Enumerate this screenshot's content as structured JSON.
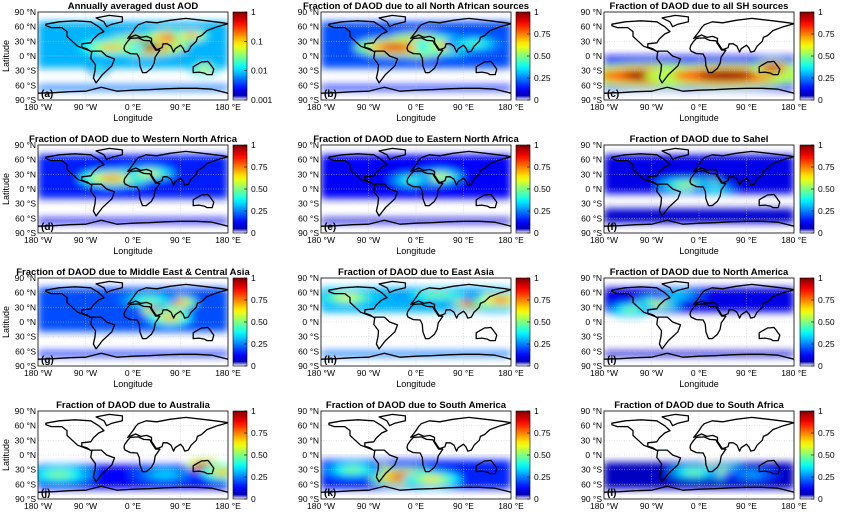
{
  "chart_data": [
    {
      "type": "heatmap",
      "panel_label": "(a)",
      "title": "Annually averaged dust AOD",
      "xlabel": "Longitude",
      "ylabel": "Latitude",
      "xlim": [
        -180,
        180
      ],
      "ylim": [
        -90,
        90
      ],
      "colorbar_ticks": [
        "1",
        "0.1",
        "0.01",
        "0.001"
      ],
      "colorbar_scale": "log",
      "clim": [
        0.001,
        1
      ],
      "blobs": [
        [
          20,
          22,
          60,
          16,
          1.0
        ],
        [
          70,
          38,
          40,
          12,
          0.85
        ],
        [
          110,
          42,
          25,
          8,
          0.8
        ],
        [
          -40,
          18,
          45,
          12,
          0.7
        ],
        [
          135,
          -25,
          22,
          10,
          0.6
        ],
        [
          -65,
          -25,
          15,
          10,
          0.45
        ]
      ],
      "base": 0.3,
      "gap": [
        -60,
        -25
      ]
    },
    {
      "type": "heatmap",
      "panel_label": "(b)",
      "title": "Fraction of DAOD due to all North African sources",
      "xlabel": "Longitude",
      "ylabel": "",
      "xlim": [
        -180,
        180
      ],
      "ylim": [
        -90,
        90
      ],
      "colorbar_ticks": [
        "1",
        "0.75",
        "0.50",
        "0.25",
        "0"
      ],
      "clim": [
        0,
        1
      ],
      "blobs": [
        [
          5,
          22,
          55,
          18,
          1.0
        ],
        [
          -40,
          18,
          55,
          14,
          0.9
        ],
        [
          60,
          22,
          45,
          14,
          0.7
        ],
        [
          110,
          25,
          40,
          12,
          0.45
        ]
      ],
      "base": 0.2,
      "gap": [
        -60,
        -25
      ]
    },
    {
      "type": "heatmap",
      "panel_label": "(c)",
      "title": "Fraction of DAOD due to all SH sources",
      "xlabel": "Longitude",
      "ylabel": "",
      "xlim": [
        -180,
        180
      ],
      "ylim": [
        -90,
        90
      ],
      "colorbar_ticks": [
        "1",
        "0.75",
        "0.50",
        "0.25",
        "0"
      ],
      "clim": [
        0,
        1
      ],
      "blobs": [
        [
          -90,
          -40,
          110,
          18,
          1.0
        ],
        [
          50,
          -40,
          110,
          18,
          1.0
        ],
        [
          140,
          -25,
          30,
          12,
          0.95
        ]
      ],
      "base": 0.15,
      "gap": [
        0,
        90
      ]
    },
    {
      "type": "heatmap",
      "panel_label": "(d)",
      "title": "Fraction of DAOD due to Western North Africa",
      "xlabel": "Longitude",
      "ylabel": "Latitude",
      "xlim": [
        -180,
        180
      ],
      "ylim": [
        -90,
        90
      ],
      "colorbar_ticks": [
        "1",
        "0.75",
        "0.50",
        "0.25",
        "0"
      ],
      "clim": [
        0,
        1
      ],
      "blobs": [
        [
          -5,
          25,
          30,
          12,
          0.9
        ],
        [
          -40,
          22,
          45,
          12,
          0.75
        ],
        [
          30,
          32,
          35,
          10,
          0.6
        ]
      ],
      "base": 0.15,
      "gap": [
        -60,
        -20
      ]
    },
    {
      "type": "heatmap",
      "panel_label": "(e)",
      "title": "Fraction of DAOD due to Eastern North Africa",
      "xlabel": "Longitude",
      "ylabel": "",
      "xlim": [
        -180,
        180
      ],
      "ylim": [
        -90,
        90
      ],
      "colorbar_ticks": [
        "1",
        "0.75",
        "0.50",
        "0.25",
        "0"
      ],
      "clim": [
        0,
        1
      ],
      "blobs": [
        [
          22,
          22,
          20,
          10,
          0.9
        ],
        [
          45,
          25,
          30,
          10,
          0.6
        ],
        [
          -10,
          18,
          30,
          10,
          0.45
        ]
      ],
      "base": 0.12,
      "gap": [
        -60,
        -20
      ]
    },
    {
      "type": "heatmap",
      "panel_label": "(f)",
      "title": "Fraction of DAOD due to Sahel",
      "xlabel": "Longitude",
      "ylabel": "",
      "xlim": [
        -180,
        180
      ],
      "ylim": [
        -90,
        90
      ],
      "colorbar_ticks": [
        "1",
        "0.75",
        "0.50",
        "0.25",
        "0"
      ],
      "clim": [
        0,
        1
      ],
      "blobs": [
        [
          10,
          10,
          25,
          8,
          0.85
        ],
        [
          -25,
          8,
          40,
          10,
          0.55
        ],
        [
          30,
          0,
          30,
          8,
          0.4
        ]
      ],
      "base": 0.1,
      "gap": [
        -40,
        -10
      ]
    },
    {
      "type": "heatmap",
      "panel_label": "(g)",
      "title": "Fraction of DAOD due to Middle East & Central Asia",
      "xlabel": "Longitude",
      "ylabel": "Latitude",
      "xlim": [
        -180,
        180
      ],
      "ylim": [
        -90,
        90
      ],
      "colorbar_ticks": [
        "1",
        "0.75",
        "0.50",
        "0.25",
        "0"
      ],
      "clim": [
        0,
        1
      ],
      "blobs": [
        [
          55,
          25,
          28,
          12,
          1.0
        ],
        [
          80,
          40,
          30,
          10,
          0.85
        ],
        [
          70,
          10,
          30,
          12,
          0.7
        ],
        [
          30,
          45,
          40,
          10,
          0.5
        ]
      ],
      "base": 0.2,
      "gap": [
        -60,
        -20
      ]
    },
    {
      "type": "heatmap",
      "panel_label": "(h)",
      "title": "Fraction of DAOD due to East Asia",
      "xlabel": "Longitude",
      "ylabel": "",
      "xlim": [
        -180,
        180
      ],
      "ylim": [
        -90,
        90
      ],
      "colorbar_ticks": [
        "1",
        "0.75",
        "0.50",
        "0.25",
        "0"
      ],
      "clim": [
        0,
        1
      ],
      "blobs": [
        [
          110,
          40,
          30,
          10,
          1.0
        ],
        [
          160,
          45,
          40,
          12,
          0.8
        ],
        [
          -130,
          50,
          45,
          12,
          0.6
        ],
        [
          40,
          55,
          60,
          10,
          0.5
        ]
      ],
      "base": 0.3,
      "gap": [
        -60,
        20
      ]
    },
    {
      "type": "heatmap",
      "panel_label": "(i)",
      "title": "Fraction of DAOD due to North America",
      "xlabel": "Longitude",
      "ylabel": "",
      "xlim": [
        -180,
        180
      ],
      "ylim": [
        -90,
        90
      ],
      "colorbar_ticks": [
        "1",
        "0.75",
        "0.50",
        "0.25",
        "0"
      ],
      "clim": [
        0,
        1
      ],
      "blobs": [
        [
          -105,
          32,
          18,
          10,
          1.0
        ],
        [
          -75,
          40,
          30,
          10,
          0.6
        ],
        [
          -130,
          25,
          30,
          10,
          0.5
        ],
        [
          -40,
          55,
          40,
          10,
          0.35
        ]
      ],
      "base": 0.1,
      "gap": [
        -60,
        20
      ]
    },
    {
      "type": "heatmap",
      "panel_label": "(j)",
      "title": "Fraction of DAOD due to Australia",
      "xlabel": "Longitude",
      "ylabel": "Latitude",
      "xlim": [
        -180,
        180
      ],
      "ylim": [
        -90,
        90
      ],
      "colorbar_ticks": [
        "1",
        "0.75",
        "0.50",
        "0.25",
        "0"
      ],
      "clim": [
        0,
        1
      ],
      "blobs": [
        [
          135,
          -25,
          25,
          12,
          1.0
        ],
        [
          170,
          -35,
          30,
          12,
          0.7
        ],
        [
          -140,
          -40,
          50,
          14,
          0.5
        ],
        [
          60,
          -40,
          50,
          12,
          0.35
        ]
      ],
      "base": 0.15,
      "gap": [
        -20,
        90
      ]
    },
    {
      "type": "heatmap",
      "panel_label": "(k)",
      "title": "Fraction of DAOD due to South America",
      "xlabel": "Longitude",
      "ylabel": "",
      "xlim": [
        -180,
        180
      ],
      "ylim": [
        -90,
        90
      ],
      "colorbar_ticks": [
        "1",
        "0.75",
        "0.50",
        "0.25",
        "0"
      ],
      "clim": [
        0,
        1
      ],
      "blobs": [
        [
          -65,
          -35,
          15,
          12,
          1.0
        ],
        [
          -20,
          -45,
          50,
          14,
          0.9
        ],
        [
          30,
          -50,
          40,
          12,
          0.65
        ],
        [
          -120,
          -30,
          40,
          12,
          0.5
        ]
      ],
      "base": 0.2,
      "gap": [
        -10,
        90
      ]
    },
    {
      "type": "heatmap",
      "panel_label": "(l)",
      "title": "Fraction of DAOD due to South Africa",
      "xlabel": "Longitude",
      "ylabel": "",
      "xlim": [
        -180,
        180
      ],
      "ylim": [
        -90,
        90
      ],
      "colorbar_ticks": [
        "1",
        "0.75",
        "0.50",
        "0.25",
        "0"
      ],
      "clim": [
        0,
        1
      ],
      "blobs": [
        [
          22,
          -28,
          12,
          8,
          1.0
        ],
        [
          50,
          -35,
          35,
          10,
          0.6
        ],
        [
          -10,
          -35,
          35,
          10,
          0.5
        ],
        [
          100,
          -40,
          40,
          10,
          0.3
        ]
      ],
      "base": 0.08,
      "gap": [
        -15,
        90
      ]
    }
  ],
  "axes": {
    "x_ticks": [
      "180 °W",
      "90 °W",
      "0 °E",
      "90 °E",
      "180 °E"
    ],
    "y_ticks": [
      "90 °N",
      "60 °N",
      "30 °N",
      "0 °N",
      "30 °S",
      "60 °S",
      "90 °S"
    ]
  }
}
